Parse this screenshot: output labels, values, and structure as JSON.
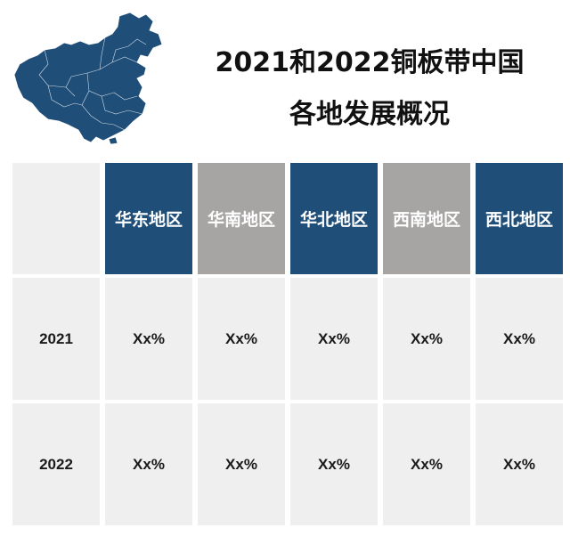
{
  "title": {
    "line1": "2021和2022铜板带中国",
    "line2": "各地发展概况"
  },
  "colors": {
    "blue": "#1f4e79",
    "gray": "#a7a5a4",
    "cell": "#efefef"
  },
  "table": {
    "corner": "",
    "regions": [
      "华东地区",
      "华南地区",
      "华北地区",
      "西南地区",
      "西北地区"
    ],
    "rows": [
      {
        "year": "2021",
        "values": [
          "Xx%",
          "Xx%",
          "Xx%",
          "Xx%",
          "Xx%"
        ]
      },
      {
        "year": "2022",
        "values": [
          "Xx%",
          "Xx%",
          "Xx%",
          "Xx%",
          "Xx%"
        ]
      }
    ]
  }
}
